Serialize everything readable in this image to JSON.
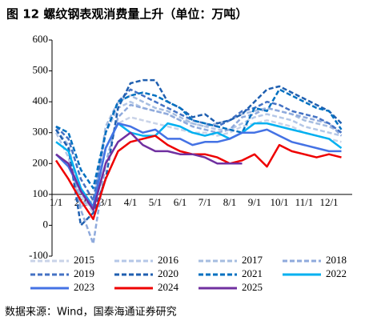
{
  "chart_data": {
    "type": "line",
    "title": "图 12 螺纹钢表观消费量上升（单位：万吨）",
    "source": "数据来源：Wind，国泰海通证券研究",
    "categories": [
      "1/1",
      null,
      "2/1",
      null,
      "3/1",
      null,
      "4/1",
      null,
      "5/1",
      null,
      "6/1",
      null,
      "7/1",
      null,
      "8/1",
      null,
      "9/1",
      null,
      "10/1",
      null,
      "11/1",
      null,
      "12/1",
      null
    ],
    "ylim": [
      -100,
      600
    ],
    "yticks": [
      -100,
      0,
      100,
      200,
      300,
      400,
      500,
      600
    ],
    "x_axis_at": 100,
    "series": [
      {
        "name": "2015",
        "color": "#c9d3e8",
        "dashed": true,
        "values": [
          310,
          250,
          100,
          40,
          250,
          330,
          350,
          340,
          330,
          320,
          310,
          300,
          300,
          290,
          300,
          320,
          330,
          340,
          330,
          320,
          300,
          290,
          280,
          270
        ]
      },
      {
        "name": "2016",
        "color": "#b4c7e7",
        "dashed": true,
        "values": [
          300,
          220,
          60,
          80,
          300,
          380,
          400,
          380,
          370,
          360,
          340,
          330,
          320,
          310,
          310,
          330,
          350,
          360,
          350,
          340,
          320,
          310,
          300,
          290
        ]
      },
      {
        "name": "2017",
        "color": "#a6bde0",
        "dashed": true,
        "values": [
          310,
          260,
          80,
          60,
          320,
          400,
          420,
          400,
          380,
          370,
          350,
          330,
          320,
          330,
          340,
          360,
          370,
          380,
          370,
          360,
          340,
          330,
          320,
          300
        ]
      },
      {
        "name": "2018",
        "color": "#8faadc",
        "dashed": true,
        "values": [
          310,
          250,
          50,
          -60,
          200,
          350,
          390,
          380,
          370,
          360,
          340,
          320,
          310,
          300,
          310,
          350,
          360,
          380,
          370,
          360,
          350,
          340,
          330,
          290
        ]
      },
      {
        "name": "2019",
        "color": "#4472c4",
        "dashed": true,
        "values": [
          320,
          280,
          150,
          80,
          300,
          400,
          440,
          420,
          400,
          380,
          360,
          340,
          330,
          320,
          340,
          370,
          380,
          400,
          390,
          370,
          360,
          350,
          330,
          300
        ]
      },
      {
        "name": "2020",
        "color": "#1f5fb0",
        "dashed": true,
        "values": [
          310,
          250,
          0,
          40,
          150,
          380,
          460,
          470,
          470,
          400,
          380,
          350,
          360,
          330,
          340,
          360,
          400,
          440,
          450,
          430,
          410,
          390,
          370,
          330
        ]
      },
      {
        "name": "2021",
        "color": "#0070c0",
        "dashed": true,
        "values": [
          320,
          300,
          180,
          120,
          300,
          400,
          420,
          430,
          420,
          400,
          380,
          340,
          330,
          320,
          310,
          300,
          380,
          370,
          440,
          420,
          400,
          380,
          370,
          310
        ]
      },
      {
        "name": "2022",
        "color": "#00b0f0",
        "dashed": false,
        "values": [
          270,
          240,
          120,
          60,
          250,
          330,
          300,
          290,
          290,
          330,
          320,
          300,
          290,
          300,
          280,
          300,
          330,
          330,
          320,
          310,
          300,
          290,
          280,
          250
        ]
      },
      {
        "name": "2023",
        "color": "#4472e4",
        "dashed": false,
        "values": [
          230,
          190,
          110,
          60,
          250,
          330,
          320,
          300,
          310,
          280,
          280,
          260,
          270,
          270,
          280,
          300,
          300,
          310,
          290,
          270,
          260,
          250,
          240,
          240
        ]
      },
      {
        "name": "2024",
        "color": "#ee0000",
        "dashed": false,
        "values": [
          210,
          150,
          80,
          20,
          150,
          240,
          270,
          280,
          290,
          260,
          240,
          230,
          230,
          220,
          200,
          210,
          230,
          190,
          260,
          240,
          230,
          220,
          230,
          220
        ]
      },
      {
        "name": "2025",
        "color": "#7030a0",
        "dashed": false,
        "values": [
          230,
          200,
          110,
          50,
          200,
          270,
          300,
          260,
          240,
          240,
          230,
          230,
          220,
          200,
          200,
          200,
          null,
          null,
          null,
          null,
          null,
          null,
          null,
          null
        ]
      }
    ]
  }
}
